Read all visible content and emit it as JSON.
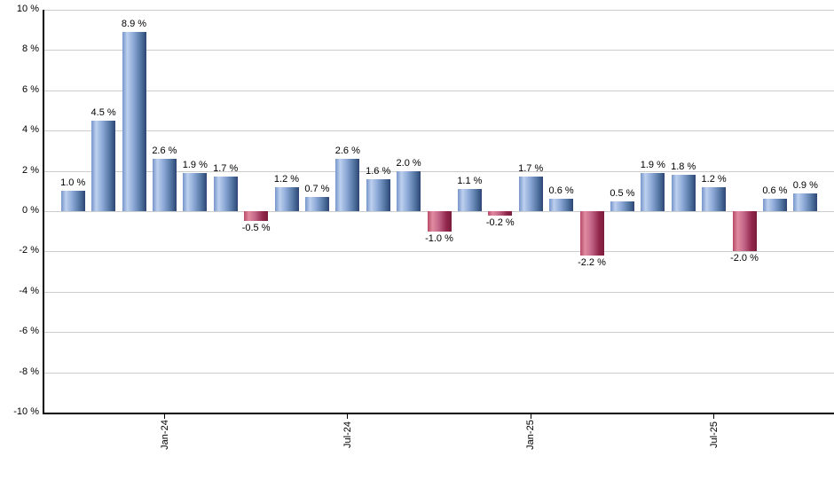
{
  "chart_data": {
    "type": "bar",
    "title": "",
    "xlabel": "",
    "ylabel": "",
    "ylim": [
      -10,
      10
    ],
    "grid": true,
    "values": [
      1.0,
      4.5,
      8.9,
      2.6,
      1.9,
      1.7,
      -0.5,
      1.2,
      0.7,
      2.6,
      1.6,
      2.0,
      -1.0,
      1.1,
      -0.2,
      1.7,
      0.6,
      -2.2,
      0.5,
      1.9,
      1.8,
      1.2,
      -2.0,
      0.6,
      0.9
    ],
    "bar_labels": [
      "1.0 %",
      "4.5 %",
      "8.9 %",
      "2.6 %",
      "1.9 %",
      "1.7 %",
      "-0.5 %",
      "1.2 %",
      "0.7 %",
      "2.6 %",
      "1.6 %",
      "2.0 %",
      "-1.0 %",
      "1.1 %",
      "-0.2 %",
      "1.7 %",
      "0.6 %",
      "-2.2 %",
      "0.5 %",
      "1.9 %",
      "1.8 %",
      "1.2 %",
      "-2.0 %",
      "0.6 %",
      "0.9 %"
    ],
    "y_tick_labels": [
      "10 %",
      "8 %",
      "6 %",
      "4 %",
      "2 %",
      "0 %",
      "-2 %",
      "-4 %",
      "-6 %",
      "-8 %",
      "-10 %"
    ],
    "x_axis_ticks": [
      {
        "label": "Jan-24",
        "bar_index": 3
      },
      {
        "label": "Jul-24",
        "bar_index": 9
      },
      {
        "label": "Jan-25",
        "bar_index": 15
      },
      {
        "label": "Jul-25",
        "bar_index": 21
      }
    ],
    "colors": {
      "positive_gradient": [
        "#7595ca",
        "#bdd0ee",
        "#8fabd9",
        "#51739f",
        "#2d4474"
      ],
      "negative_gradient": [
        "#b94a67",
        "#e08ba0",
        "#c5698a",
        "#93274c",
        "#7a1c3a"
      ],
      "gridline": "#cccccc",
      "axis": "#000000",
      "label_text": "#000000",
      "background": "#ffffff"
    }
  }
}
